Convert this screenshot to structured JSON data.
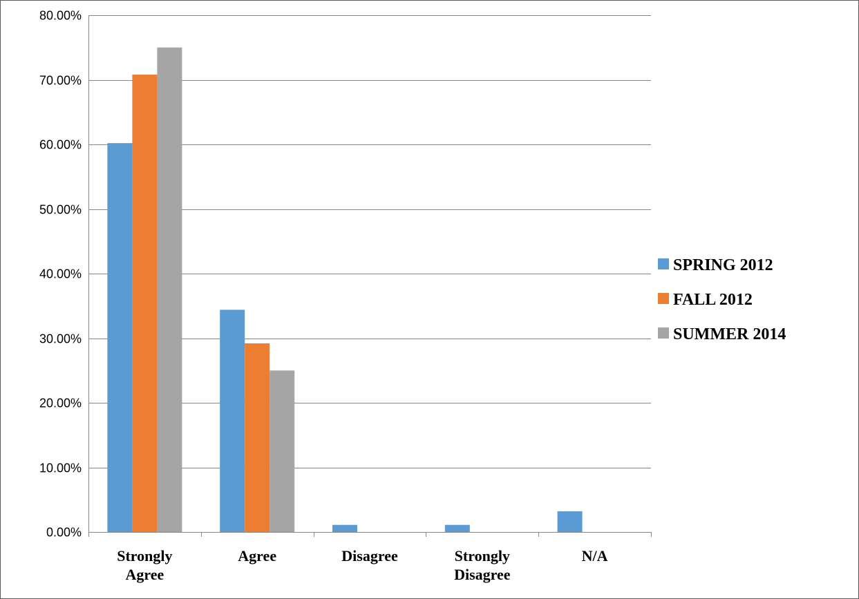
{
  "chart_data": {
    "type": "bar",
    "title": "",
    "xlabel": "",
    "ylabel": "",
    "categories": [
      [
        "Strongly",
        "Agree"
      ],
      [
        "Agree"
      ],
      [
        "Disagree"
      ],
      [
        "Strongly",
        "Disagree"
      ],
      [
        "N/A"
      ]
    ],
    "series": [
      {
        "name": "SPRING 2012",
        "color": "#5B9BD5",
        "values": [
          60.2,
          34.4,
          1.1,
          1.1,
          3.2
        ]
      },
      {
        "name": "FALL 2012",
        "color": "#ED7D31",
        "values": [
          70.8,
          29.2,
          0,
          0,
          0
        ]
      },
      {
        "name": "SUMMER 2014",
        "color": "#A5A5A5",
        "values": [
          75.0,
          25.0,
          0,
          0,
          0
        ]
      }
    ],
    "ylim": [
      0,
      80
    ],
    "yticks": [
      "0.00%",
      "10.00%",
      "20.00%",
      "30.00%",
      "40.00%",
      "50.00%",
      "60.00%",
      "70.00%",
      "80.00%"
    ],
    "grid": true,
    "legend_position": "right"
  }
}
